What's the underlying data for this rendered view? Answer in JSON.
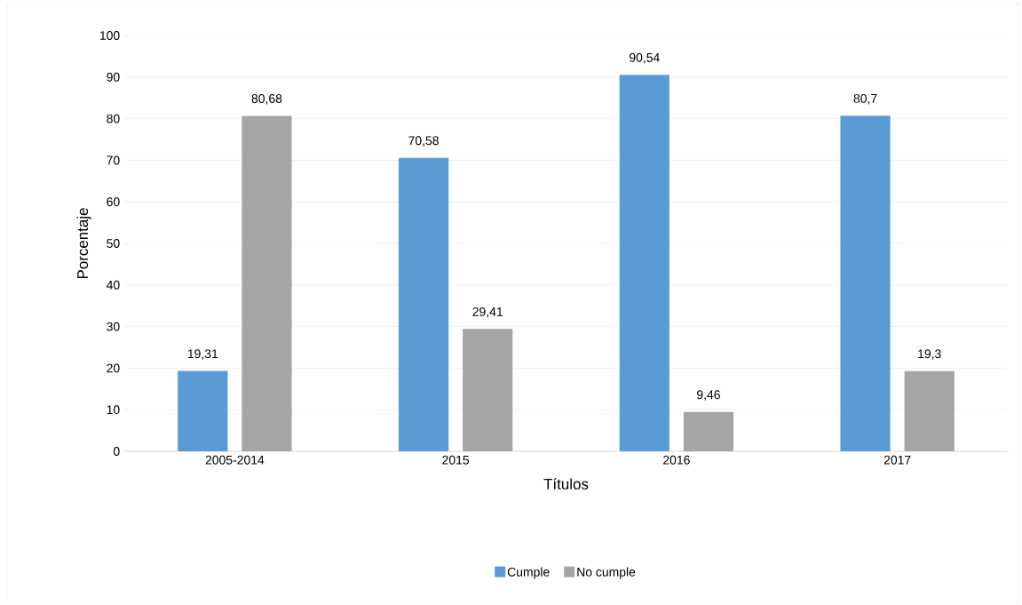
{
  "chart_data": {
    "type": "bar",
    "xlabel": "Títulos",
    "ylabel": "Porcentaje",
    "categories": [
      "2005-2014",
      "2015",
      "2016",
      "2017"
    ],
    "series": [
      {
        "name": "Cumple",
        "color": "#5b9bd5",
        "values": [
          19.31,
          70.58,
          90.54,
          80.7
        ],
        "value_labels": [
          "19,31",
          "70,58",
          "90,54",
          "80,7"
        ]
      },
      {
        "name": "No cumple",
        "color": "#a5a5a5",
        "values": [
          80.68,
          29.41,
          9.46,
          19.3
        ],
        "value_labels": [
          "80,68",
          "29,41",
          "9,46",
          "19,3"
        ]
      }
    ],
    "ylim": [
      0,
      100
    ],
    "yticks": [
      0,
      10,
      20,
      30,
      40,
      50,
      60,
      70,
      80,
      90,
      100
    ],
    "grid": "y",
    "legend": "bottom"
  }
}
